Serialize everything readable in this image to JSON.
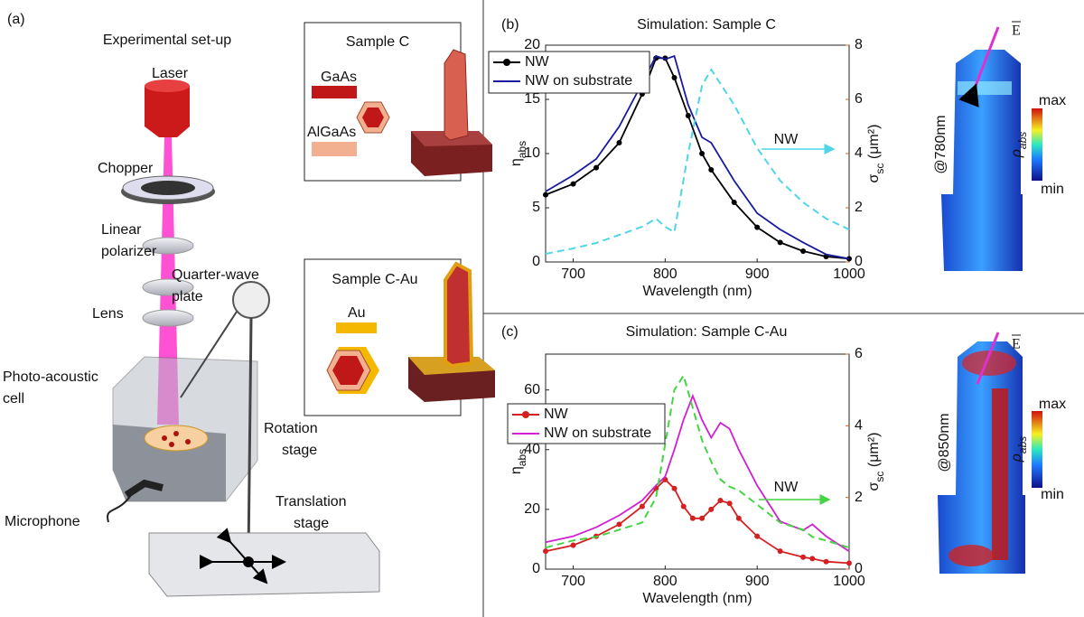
{
  "setup": {
    "label": "(a)",
    "title": "Experimental set-up",
    "components": [
      {
        "lines": [
          "Laser"
        ]
      },
      {
        "lines": [
          "Chopper"
        ]
      },
      {
        "lines": [
          "Linear",
          "polarizer"
        ]
      },
      {
        "lines": [
          "Quarter-wave",
          "plate"
        ]
      },
      {
        "lines": [
          "Lens"
        ]
      },
      {
        "lines": [
          "Photo-acoustic",
          "cell"
        ]
      },
      {
        "lines": [
          "Rotation",
          "stage"
        ]
      },
      {
        "lines": [
          "Translation",
          "stage"
        ]
      },
      {
        "lines": [
          "Microphone"
        ]
      }
    ]
  },
  "samples": [
    {
      "title": "Sample C",
      "materials": [
        "GaAs",
        "AlGaAs"
      ]
    },
    {
      "title": "Sample C-Au",
      "materials": [
        "Au"
      ]
    }
  ],
  "chart_data": [
    {
      "type": "line",
      "panel_label": "(b)",
      "title": "Simulation: Sample C",
      "xlabel": "Wavelength (nm)",
      "ylabel": {
        "text": "η",
        "sub": "abs"
      },
      "y2label": {
        "text": "σ",
        "sub": "sc",
        "rest": " (μm²)"
      },
      "x": [
        670,
        700,
        725,
        750,
        775,
        790,
        800,
        810,
        825,
        840,
        850,
        875,
        900,
        925,
        950,
        975,
        1000
      ],
      "xlim": [
        670,
        1000
      ],
      "xticks": [
        700,
        800,
        900,
        1000
      ],
      "ylim": [
        0,
        20
      ],
      "yticks": [
        0,
        5,
        10,
        15,
        20
      ],
      "y2lim": [
        0,
        8
      ],
      "y2ticks": [
        0,
        2,
        4,
        6,
        8
      ],
      "y2color": "#c0632a",
      "legend": "upper left",
      "annotation": "NW",
      "series": [
        {
          "name": "NW",
          "color": "#000000",
          "marker": "o",
          "values": [
            6.2,
            7.2,
            8.7,
            11.0,
            15.5,
            18.8,
            18.8,
            17.0,
            13.5,
            10.0,
            8.5,
            5.5,
            3.2,
            1.8,
            1.0,
            0.5,
            0.3
          ]
        },
        {
          "name": "NW on substrate",
          "color": "#1a1a9e",
          "values": [
            6.5,
            8.0,
            9.5,
            12.5,
            16.5,
            19.0,
            18.7,
            19.0,
            14.5,
            11.5,
            11.0,
            7.5,
            4.5,
            3.0,
            1.8,
            0.7,
            0.3
          ]
        },
        {
          "color": "#4fd6e6",
          "dash": true,
          "axis": "y2",
          "values": [
            0.3,
            0.5,
            0.7,
            1.0,
            1.3,
            1.6,
            1.3,
            1.1,
            4.0,
            6.5,
            7.1,
            5.8,
            4.2,
            3.0,
            2.2,
            1.6,
            1.2
          ]
        }
      ]
    },
    {
      "type": "line",
      "panel_label": "(c)",
      "title": "Simulation: Sample C-Au",
      "xlabel": "Wavelength (nm)",
      "ylabel": {
        "text": "η",
        "sub": "abs"
      },
      "y2label": {
        "text": "σ",
        "sub": "sc",
        "rest": " (μm²)"
      },
      "x": [
        670,
        700,
        725,
        750,
        775,
        790,
        800,
        810,
        820,
        830,
        840,
        850,
        860,
        870,
        880,
        900,
        925,
        950,
        960,
        975,
        1000
      ],
      "xlim": [
        670,
        1000
      ],
      "xticks": [
        700,
        800,
        900,
        1000
      ],
      "ylim": [
        0,
        72
      ],
      "yticks": [
        0,
        20,
        40,
        60
      ],
      "y2lim": [
        0,
        6
      ],
      "y2ticks": [
        0,
        2,
        4,
        6
      ],
      "y2color": "#c0632a",
      "legend": "upper left",
      "annotation": "NW",
      "series": [
        {
          "name": "NW",
          "color": "#d42020",
          "marker": "o",
          "values": [
            6,
            8,
            11,
            15,
            21,
            27,
            30,
            27,
            21,
            17,
            17,
            20,
            23,
            22,
            17,
            11,
            6,
            4,
            3.5,
            2.5,
            2
          ]
        },
        {
          "name": "NW on substrate",
          "color": "#d020d0",
          "values": [
            9,
            11,
            14,
            18,
            23,
            28,
            31,
            40,
            50,
            58,
            50,
            44,
            49,
            47,
            40,
            28,
            16,
            13,
            15,
            11,
            6
          ]
        },
        {
          "color": "#44d444",
          "dash": true,
          "axis": "y2",
          "values": [
            0.6,
            0.8,
            0.9,
            1.1,
            1.3,
            2,
            3.5,
            5,
            5.4,
            4.5,
            3.6,
            3,
            2.5,
            2.3,
            2.2,
            1.8,
            1.3,
            1.1,
            0.9,
            0.8,
            0.6
          ]
        }
      ]
    }
  ],
  "field_maps": [
    {
      "wavelength": "@780nm",
      "max": "max",
      "min": "min",
      "colorbar": {
        "text": "ρ",
        "sub": "abs"
      },
      "field": "E"
    },
    {
      "wavelength": "@850nm",
      "max": "max",
      "min": "min",
      "colorbar": {
        "text": "ρ",
        "sub": "abs"
      },
      "field": "E"
    }
  ]
}
